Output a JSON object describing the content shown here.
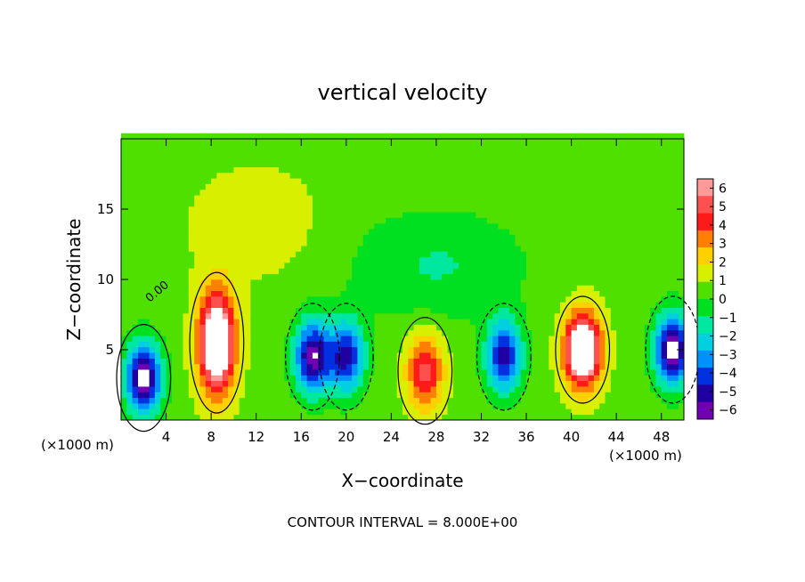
{
  "chart_data": {
    "type": "heatmap",
    "title": "vertical velocity",
    "xlabel": "X−coordinate",
    "ylabel": "Z−coordinate",
    "x_unit_left": "(×1000 m)",
    "x_unit_right": "(×1000 m)",
    "footer": "CONTOUR INTERVAL = 8.000E+00",
    "contour_label": "0.00",
    "xlim": [
      0,
      50
    ],
    "ylim": [
      0,
      20
    ],
    "x_ticks": [
      {
        "v": 4,
        "label": "4"
      },
      {
        "v": 8,
        "label": "8"
      },
      {
        "v": 12,
        "label": "12"
      },
      {
        "v": 16,
        "label": "16"
      },
      {
        "v": 20,
        "label": "20"
      },
      {
        "v": 24,
        "label": "24"
      },
      {
        "v": 28,
        "label": "28"
      },
      {
        "v": 32,
        "label": "32"
      },
      {
        "v": 36,
        "label": "36"
      },
      {
        "v": 40,
        "label": "40"
      },
      {
        "v": 44,
        "label": "44"
      },
      {
        "v": 48,
        "label": "48"
      }
    ],
    "y_ticks": [
      {
        "v": 5,
        "label": "5"
      },
      {
        "v": 10,
        "label": "10"
      },
      {
        "v": 15,
        "label": "15"
      }
    ],
    "colorbar": {
      "min": -6,
      "max": 6,
      "ticks": [
        "6",
        "5",
        "4",
        "3",
        "2",
        "1",
        "0",
        "−1",
        "−2",
        "−3",
        "−4",
        "−5",
        "−6"
      ],
      "colors": [
        "#ff9a9a",
        "#ff5050",
        "#ff1a1a",
        "#ff8000",
        "#ffd000",
        "#d8f000",
        "#50e000",
        "#00e020",
        "#00e8a0",
        "#00d0e0",
        "#0090ff",
        "#0030e0",
        "#2000a0",
        "#7000b0"
      ]
    },
    "features": [
      {
        "kind": "updraft",
        "x": 2.0,
        "z": 3.0,
        "amp": -7.0
      },
      {
        "kind": "updraft",
        "x": 8.5,
        "z": 5.5,
        "amp": 8.5
      },
      {
        "kind": "downdraft",
        "x": 17.0,
        "z": 4.5,
        "amp": -6.5
      },
      {
        "kind": "downdraft",
        "x": 20.0,
        "z": 4.5,
        "amp": -5.5
      },
      {
        "kind": "updraft",
        "x": 27.0,
        "z": 3.5,
        "amp": 4.5
      },
      {
        "kind": "downdraft",
        "x": 34.0,
        "z": 4.5,
        "amp": -5.5
      },
      {
        "kind": "updraft",
        "x": 41.0,
        "z": 5.0,
        "amp": 9.0
      },
      {
        "kind": "downdraft",
        "x": 49.0,
        "z": 5.0,
        "amp": -7.0
      }
    ]
  }
}
